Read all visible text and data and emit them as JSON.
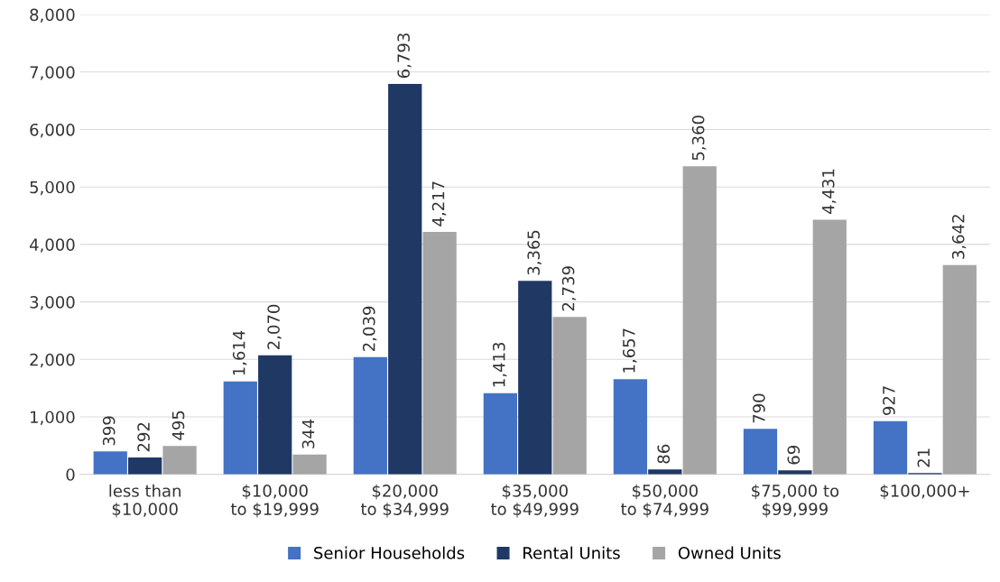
{
  "chart_data": {
    "type": "bar",
    "categories": [
      "less than\n$10,000",
      "$10,000\nto $19,999",
      "$20,000\nto $34,999",
      "$35,000\nto $49,999",
      "$50,000\nto $74,999",
      "$75,000 to\n$99,999",
      "$100,000+"
    ],
    "series": [
      {
        "name": "Senior Households",
        "color": "#4472c4",
        "values": [
          399,
          1614,
          2039,
          1413,
          1657,
          790,
          927
        ],
        "value_labels": [
          "399",
          "1,614",
          "2,039",
          "1,413",
          "1,657",
          "790",
          "927"
        ]
      },
      {
        "name": "Rental Units",
        "color": "#203864",
        "values": [
          292,
          2070,
          6793,
          3365,
          86,
          69,
          21
        ],
        "value_labels": [
          "292",
          "2,070",
          "6,793",
          "3,365",
          "86",
          "69",
          "21"
        ]
      },
      {
        "name": "Owned Units",
        "color": "#a5a5a5",
        "values": [
          495,
          344,
          4217,
          2739,
          5360,
          4431,
          3642
        ],
        "value_labels": [
          "495",
          "344",
          "4,217",
          "2,739",
          "5,360",
          "4,431",
          "3,642"
        ]
      }
    ],
    "ylim": [
      0,
      8000
    ],
    "yticks": [
      0,
      {
        "value": 1000,
        "label": "1,000"
      },
      {
        "value": 2000,
        "label": "2,000"
      },
      {
        "value": 3000,
        "label": "3,000"
      },
      {
        "value": 4000,
        "label": "4,000"
      },
      {
        "value": 5000,
        "label": "5,000"
      },
      {
        "value": 6000,
        "label": "6,000"
      },
      {
        "value": 7000,
        "label": "7,000"
      },
      {
        "value": 8000,
        "label": "8,000"
      }
    ],
    "grid": "y",
    "legend": "bottom"
  }
}
